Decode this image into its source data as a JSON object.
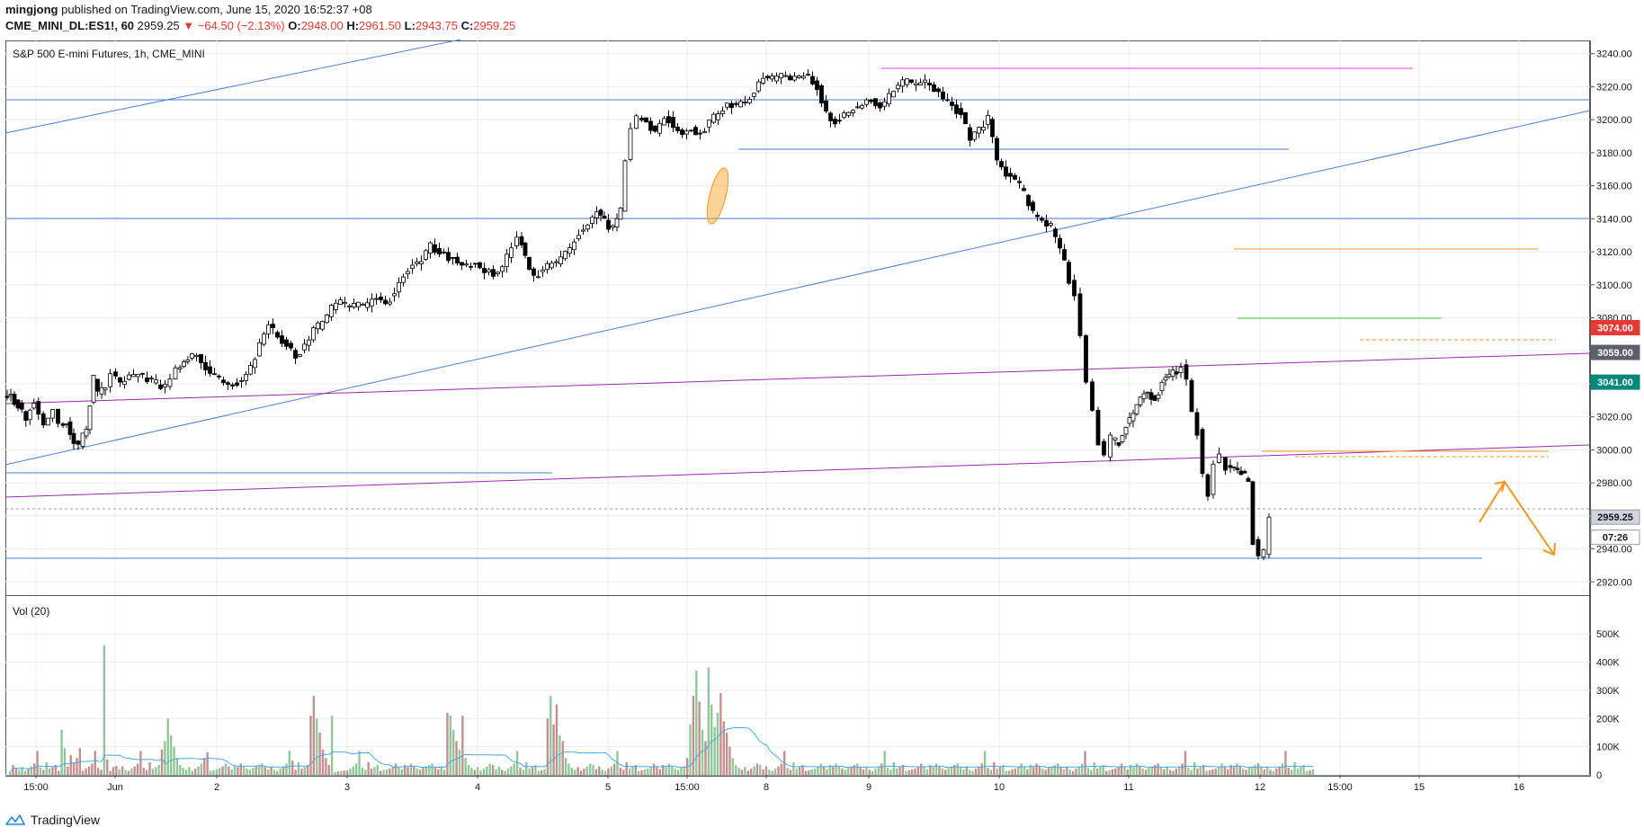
{
  "header": {
    "author": "mingjong",
    "published_text": " published on TradingView.com, June 15, 2020 16:52:37 +08",
    "symbol": "CME_MINI_DL:ES1!, 60",
    "last_price": "2959.25",
    "change": "▼ −64.50 (−2.13%)",
    "open_label": "O:",
    "open": "2948.00",
    "high_label": "H:",
    "high": "2961.50",
    "low_label": "L:",
    "low": "2943.75",
    "close_label": "C:",
    "close": "2959.25"
  },
  "chart_title": "S&P 500 E-mini Futures, 1h, CME_MINI",
  "volume_title": "Vol (20)",
  "price_badges": [
    {
      "text": "3074.00",
      "value": 3074,
      "color": "#e53935"
    },
    {
      "text": "3059.00",
      "value": 3059,
      "color": "#5d606b"
    },
    {
      "text": "3041.00",
      "value": 3041,
      "color": "#00897b"
    },
    {
      "text": "2959.25",
      "value": 2959.25,
      "color": "#d1d4dc"
    },
    {
      "text": "07:26",
      "value": 2947,
      "color": "#ffffff"
    }
  ],
  "footer": {
    "brand": "TradingView"
  },
  "colors": {
    "up": "#ffffff",
    "down": "#000000",
    "vol_up": "#8fc896",
    "vol_down": "#c48d90",
    "vol_ma": "#4aa8e8"
  },
  "chart_data": {
    "type": "candlestick",
    "title": "S&P 500 E-mini Futures, 1h, CME_MINI",
    "price_axis": {
      "ticks": [
        "3240.00",
        "3220.00",
        "3200.00",
        "3180.00",
        "3160.00",
        "3140.00",
        "3120.00",
        "3100.00",
        "3080.00",
        "3060.00",
        "3040.00",
        "3020.00",
        "3000.00",
        "2980.00",
        "2960.00",
        "2940.00",
        "2920.00"
      ],
      "range": [
        2912,
        3248
      ]
    },
    "volume_axis": {
      "ticks": [
        "500K",
        "400K",
        "300K",
        "200K",
        "100K",
        "0"
      ],
      "range": [
        0,
        590
      ]
    },
    "time_axis": {
      "labels": [
        "15:00",
        "Jun",
        "2",
        "3",
        "4",
        "5",
        "15:00",
        "8",
        "9",
        "10",
        "11",
        "12",
        "15:00",
        "15",
        "16"
      ]
    },
    "points": [
      [
        0,
        3031
      ],
      [
        8,
        3033
      ],
      [
        16,
        3027
      ],
      [
        25,
        3018
      ],
      [
        34,
        3030
      ],
      [
        45,
        3016
      ],
      [
        55,
        3025
      ],
      [
        62,
        3015
      ],
      [
        70,
        3016
      ],
      [
        78,
        3006
      ],
      [
        84,
        3003
      ],
      [
        92,
        3013
      ],
      [
        100,
        3043
      ],
      [
        105,
        3034
      ],
      [
        113,
        3037
      ],
      [
        120,
        3046
      ],
      [
        130,
        3041
      ],
      [
        140,
        3043
      ],
      [
        150,
        3046
      ],
      [
        160,
        3043
      ],
      [
        170,
        3040
      ],
      [
        180,
        3038
      ],
      [
        192,
        3048
      ],
      [
        205,
        3055
      ],
      [
        215,
        3057
      ],
      [
        225,
        3050
      ],
      [
        235,
        3045
      ],
      [
        245,
        3041
      ],
      [
        255,
        3040
      ],
      [
        265,
        3043
      ],
      [
        275,
        3050
      ],
      [
        285,
        3063
      ],
      [
        295,
        3075
      ],
      [
        305,
        3068
      ],
      [
        315,
        3064
      ],
      [
        325,
        3057
      ],
      [
        335,
        3062
      ],
      [
        345,
        3072
      ],
      [
        355,
        3077
      ],
      [
        365,
        3086
      ],
      [
        375,
        3089
      ],
      [
        385,
        3087
      ],
      [
        395,
        3087
      ],
      [
        405,
        3088
      ],
      [
        415,
        3092
      ],
      [
        425,
        3089
      ],
      [
        435,
        3095
      ],
      [
        445,
        3106
      ],
      [
        455,
        3112
      ],
      [
        465,
        3115
      ],
      [
        475,
        3123
      ],
      [
        485,
        3120
      ],
      [
        495,
        3117
      ],
      [
        505,
        3114
      ],
      [
        515,
        3111
      ],
      [
        525,
        3112
      ],
      [
        535,
        3109
      ],
      [
        545,
        3107
      ],
      [
        555,
        3110
      ],
      [
        565,
        3123
      ],
      [
        572,
        3130
      ],
      [
        580,
        3118
      ],
      [
        590,
        3104
      ],
      [
        600,
        3110
      ],
      [
        610,
        3113
      ],
      [
        620,
        3115
      ],
      [
        630,
        3122
      ],
      [
        640,
        3131
      ],
      [
        650,
        3137
      ],
      [
        660,
        3144
      ],
      [
        668,
        3138
      ],
      [
        678,
        3134
      ],
      [
        686,
        3145
      ],
      [
        692,
        3175
      ],
      [
        698,
        3195
      ],
      [
        705,
        3202
      ],
      [
        715,
        3198
      ],
      [
        725,
        3193
      ],
      [
        735,
        3203
      ],
      [
        745,
        3197
      ],
      [
        755,
        3191
      ],
      [
        765,
        3194
      ],
      [
        775,
        3192
      ],
      [
        785,
        3198
      ],
      [
        795,
        3204
      ],
      [
        805,
        3210
      ],
      [
        815,
        3209
      ],
      [
        825,
        3211
      ],
      [
        835,
        3217
      ],
      [
        845,
        3227
      ],
      [
        855,
        3224
      ],
      [
        865,
        3226
      ],
      [
        875,
        3224
      ],
      [
        885,
        3225
      ],
      [
        895,
        3226
      ],
      [
        905,
        3220
      ],
      [
        915,
        3204
      ],
      [
        925,
        3199
      ],
      [
        935,
        3203
      ],
      [
        945,
        3206
      ],
      [
        955,
        3210
      ],
      [
        965,
        3212
      ],
      [
        975,
        3207
      ],
      [
        985,
        3214
      ],
      [
        995,
        3221
      ],
      [
        1005,
        3223
      ],
      [
        1015,
        3221
      ],
      [
        1025,
        3223
      ],
      [
        1035,
        3219
      ],
      [
        1045,
        3212
      ],
      [
        1055,
        3208
      ],
      [
        1065,
        3203
      ],
      [
        1075,
        3189
      ],
      [
        1085,
        3194
      ],
      [
        1095,
        3201
      ],
      [
        1105,
        3176
      ],
      [
        1115,
        3166
      ],
      [
        1125,
        3164
      ],
      [
        1135,
        3155
      ],
      [
        1145,
        3143
      ],
      [
        1155,
        3140
      ],
      [
        1165,
        3135
      ],
      [
        1175,
        3122
      ],
      [
        1185,
        3103
      ],
      [
        1192,
        3095
      ],
      [
        1198,
        3070
      ],
      [
        1205,
        3041
      ],
      [
        1212,
        3024
      ],
      [
        1218,
        3005
      ],
      [
        1225,
        2996
      ],
      [
        1232,
        3007
      ],
      [
        1240,
        3004
      ],
      [
        1248,
        3015
      ],
      [
        1256,
        3023
      ],
      [
        1264,
        3031
      ],
      [
        1272,
        3035
      ],
      [
        1280,
        3030
      ],
      [
        1288,
        3041
      ],
      [
        1296,
        3045
      ],
      [
        1304,
        3047
      ],
      [
        1310,
        3052
      ],
      [
        1316,
        3041
      ],
      [
        1322,
        3024
      ],
      [
        1328,
        3011
      ],
      [
        1334,
        2985
      ],
      [
        1340,
        2973
      ],
      [
        1346,
        2991
      ],
      [
        1353,
        2995
      ],
      [
        1360,
        2990
      ],
      [
        1368,
        2989
      ],
      [
        1376,
        2986
      ],
      [
        1384,
        2982
      ],
      [
        1390,
        2945
      ],
      [
        1396,
        2935
      ],
      [
        1402,
        2938
      ],
      [
        1408,
        2959
      ]
    ],
    "volume": [
      12,
      35,
      25,
      18,
      28,
      15,
      22,
      30,
      40,
      85,
      25,
      18,
      45,
      22,
      28,
      35,
      14,
      160,
      95,
      30,
      70,
      44,
      60,
      95,
      14,
      22,
      30,
      40,
      85,
      25,
      18,
      460,
      55,
      14,
      28,
      32,
      20,
      30,
      18,
      14,
      22,
      30,
      40,
      85,
      25,
      18,
      45,
      22,
      28,
      35,
      90,
      120,
      200,
      140,
      100,
      60,
      35,
      25,
      18,
      28,
      15,
      22,
      30,
      40,
      60,
      80,
      14,
      16,
      20,
      25,
      30,
      40,
      30,
      20,
      35,
      28,
      40,
      30,
      22,
      18,
      25,
      30,
      35,
      40,
      28,
      20,
      30,
      18,
      14,
      22,
      30,
      40,
      85,
      50,
      18,
      45,
      22,
      28,
      35,
      210,
      280,
      200,
      150,
      90,
      60,
      35,
      210,
      10,
      12,
      14,
      15,
      15,
      22,
      30,
      40,
      85,
      25,
      18,
      45,
      22,
      28,
      35,
      14,
      18,
      20,
      22,
      30,
      40,
      30,
      20,
      35,
      28,
      40,
      30,
      22,
      18,
      25,
      30,
      35,
      40,
      28,
      20,
      30,
      18,
      220,
      210,
      160,
      120,
      90,
      210,
      60,
      35,
      25,
      18,
      28,
      15,
      22,
      30,
      40,
      35,
      20,
      30,
      18,
      14,
      22,
      30,
      40,
      85,
      25,
      18,
      45,
      22,
      28,
      35,
      14,
      16,
      20,
      200,
      280,
      180,
      250,
      140,
      120,
      60,
      40,
      25,
      18,
      28,
      15,
      22,
      30,
      40,
      35,
      20,
      30,
      18,
      14,
      22,
      30,
      40,
      85,
      25,
      18,
      45,
      22,
      28,
      35,
      14,
      16,
      20,
      22,
      30,
      40,
      30,
      20,
      35,
      28,
      40,
      30,
      22,
      18,
      25,
      30,
      60,
      180,
      280,
      370,
      260,
      160,
      120,
      380,
      250,
      170,
      220,
      290,
      190,
      150,
      100,
      60,
      35,
      25,
      18,
      28,
      15,
      22,
      30,
      40,
      35,
      20,
      30,
      18,
      14,
      22,
      30,
      40,
      85,
      25,
      18,
      45,
      22,
      28,
      35,
      14,
      16,
      20,
      22,
      30,
      40,
      30,
      20,
      35,
      28,
      40,
      30,
      22,
      18,
      25,
      30,
      35,
      40,
      28,
      20,
      30,
      18,
      14,
      22,
      30,
      40,
      85,
      25,
      18,
      45,
      22,
      28,
      35,
      14,
      16,
      20,
      22,
      30,
      40,
      30,
      20,
      35,
      28,
      40,
      30,
      22,
      18,
      25,
      30,
      35,
      40,
      28,
      20,
      30,
      18,
      14,
      22,
      30,
      40,
      85,
      25,
      18,
      45,
      22,
      28,
      35,
      14,
      16,
      20,
      22,
      30,
      40,
      30,
      20,
      35,
      28,
      40,
      30,
      22,
      18,
      25,
      30,
      35,
      40,
      28,
      20,
      30,
      18,
      14,
      22,
      30,
      40,
      85,
      25,
      18,
      45,
      22,
      28,
      35,
      14,
      16,
      20,
      22,
      30,
      40,
      30,
      20,
      35,
      28,
      40,
      30,
      22,
      18,
      25,
      30,
      35,
      40,
      28,
      20,
      30,
      18,
      14,
      22,
      30,
      40,
      85,
      25,
      18,
      45,
      22,
      28,
      35,
      14,
      16,
      20,
      22,
      30,
      40,
      30,
      20,
      35,
      28,
      40,
      30,
      22,
      18,
      25,
      30,
      35,
      40,
      28,
      20,
      30,
      18,
      14,
      22,
      30,
      40,
      85,
      25,
      18,
      45,
      22,
      28,
      35,
      14,
      16,
      20
    ]
  }
}
